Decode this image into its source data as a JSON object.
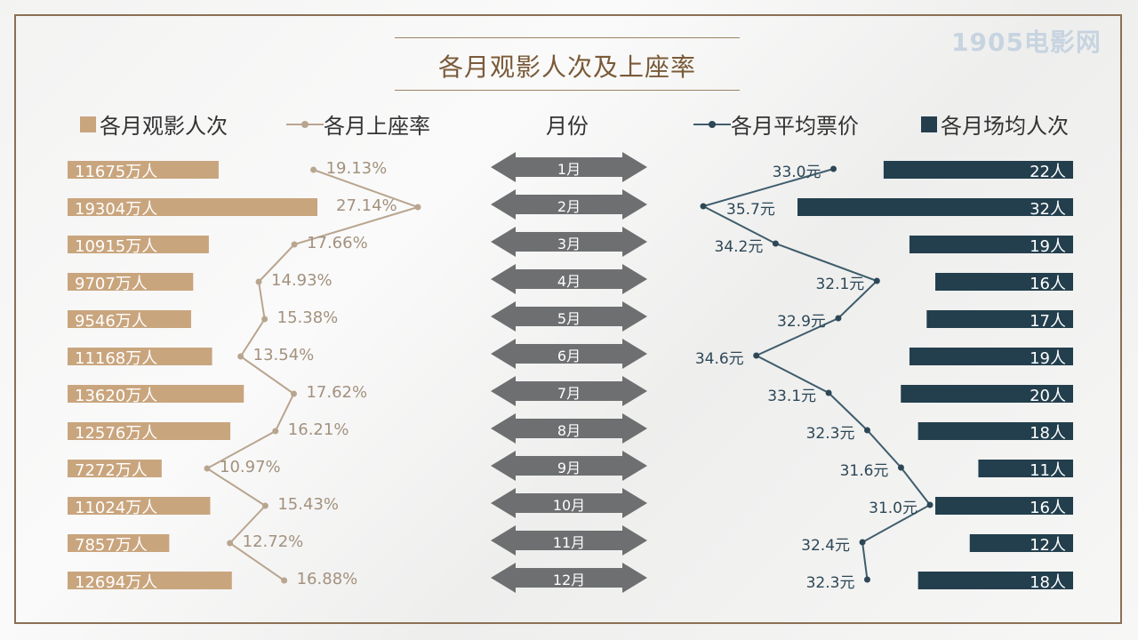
{
  "logo": "1905电影网",
  "title": "各月观影人次及上座率",
  "legend": {
    "viewers": "各月观影人次",
    "occupancy": "各月上座率",
    "month": "月份",
    "avg_price": "各月平均票价",
    "per_show": "各月场均人次"
  },
  "colors": {
    "tan": "#c9a57e",
    "tan_line": "#b9a58f",
    "navy": "#233f4e",
    "arrow": "#6e6f71"
  },
  "chart_data": {
    "type": "bar",
    "categories": [
      "1月",
      "2月",
      "3月",
      "4月",
      "5月",
      "6月",
      "7月",
      "8月",
      "9月",
      "10月",
      "11月",
      "12月"
    ],
    "series": [
      {
        "name": "各月观影人次",
        "unit": "万人",
        "values": [
          11675,
          19304,
          10915,
          9707,
          9546,
          11168,
          13620,
          12576,
          7272,
          11024,
          7857,
          12694
        ],
        "labels": [
          "11675万人",
          "19304万人",
          "10915万人",
          "9707万人",
          "9546万人",
          "11168万人",
          "13620万人",
          "12576万人",
          "7272万人",
          "11024万人",
          "7857万人",
          "12694万人"
        ]
      },
      {
        "name": "各月上座率",
        "unit": "%",
        "values": [
          19.13,
          27.14,
          17.66,
          14.93,
          15.38,
          13.54,
          17.62,
          16.21,
          10.97,
          15.43,
          12.72,
          16.88
        ],
        "labels": [
          "19.13%",
          "27.14%",
          "17.66%",
          "14.93%",
          "15.38%",
          "13.54%",
          "17.62%",
          "16.21%",
          "10.97%",
          "15.43%",
          "12.72%",
          "16.88%"
        ]
      },
      {
        "name": "各月平均票价",
        "unit": "元",
        "values": [
          33.0,
          35.7,
          34.2,
          32.1,
          32.9,
          34.6,
          33.1,
          32.3,
          31.6,
          31.0,
          32.4,
          32.3
        ],
        "labels": [
          "33.0元",
          "35.7元",
          "34.2元",
          "32.1元",
          "32.9元",
          "34.6元",
          "33.1元",
          "32.3元",
          "31.6元",
          "31.0元",
          "32.4元",
          "32.3元"
        ]
      },
      {
        "name": "各月场均人次",
        "unit": "人",
        "values": [
          22,
          32,
          19,
          16,
          17,
          19,
          20,
          18,
          11,
          16,
          12,
          18
        ],
        "labels": [
          "22人",
          "32人",
          "19人",
          "16人",
          "17人",
          "19人",
          "20人",
          "18人",
          "11人",
          "16人",
          "12人",
          "18人"
        ]
      }
    ]
  }
}
